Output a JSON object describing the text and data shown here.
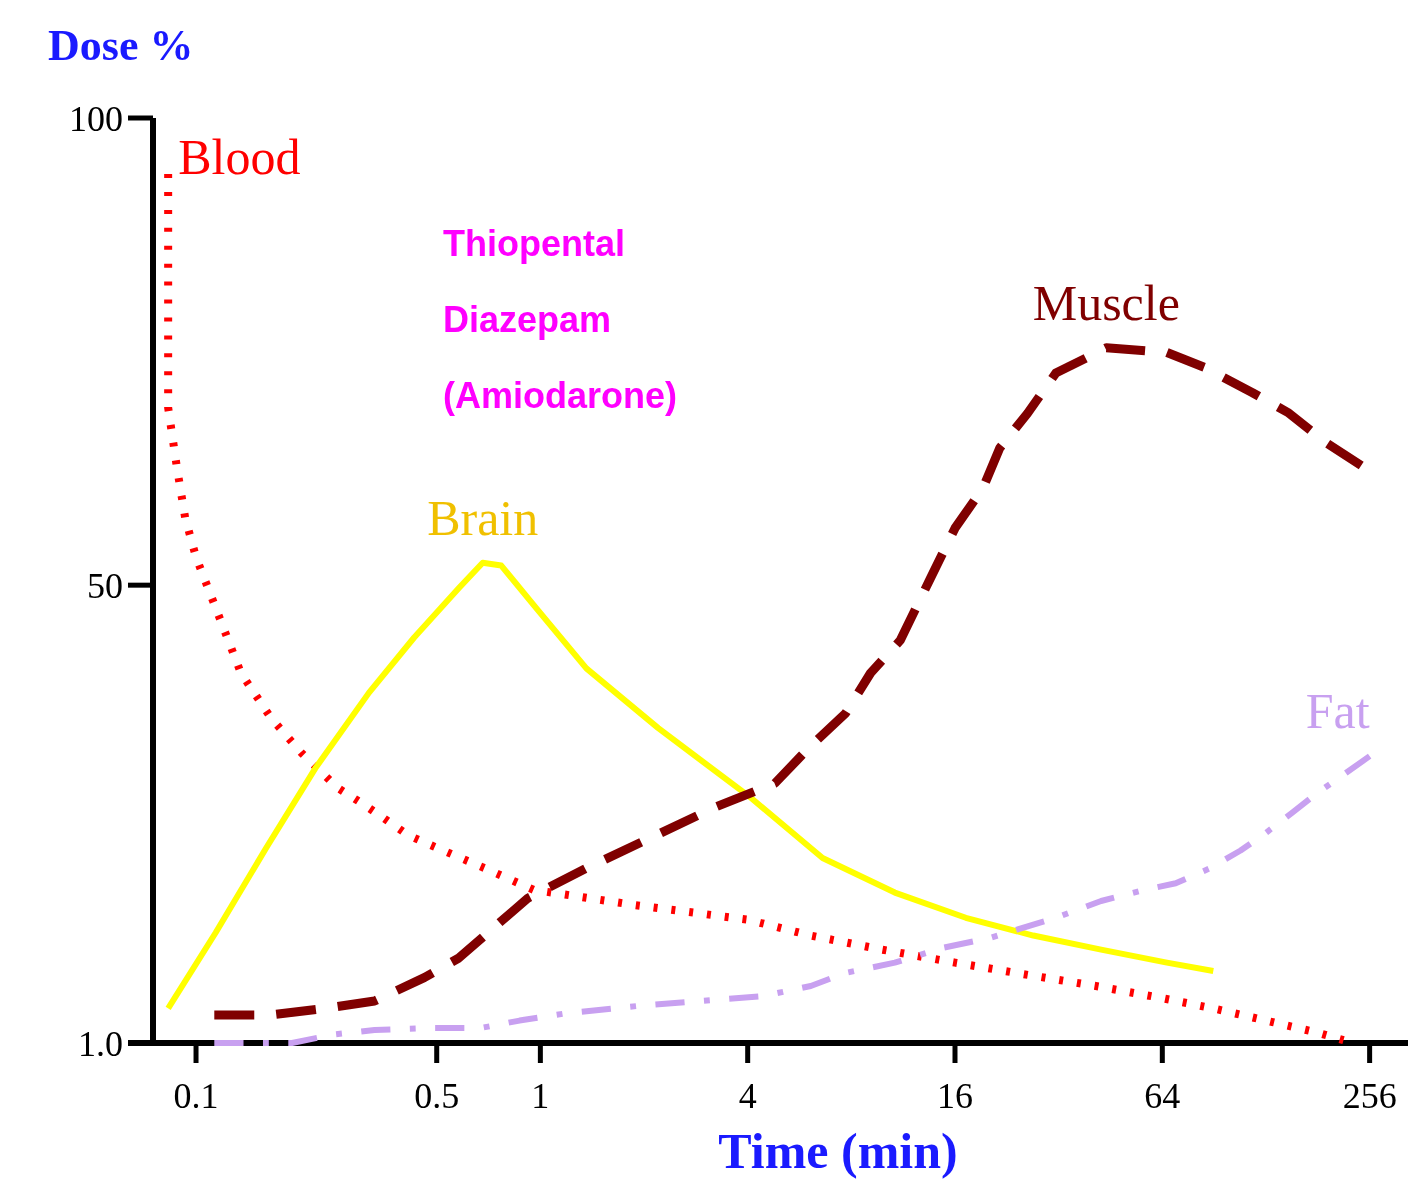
{
  "chart_data": {
    "type": "line",
    "xlabel": "Time (min)",
    "ylabel": "Dose %",
    "log": "x",
    "xlim": [
      0.075,
      320
    ],
    "ylim": [
      1,
      100
    ],
    "xticks": [
      0.1,
      0.5,
      1,
      4,
      16,
      64,
      256
    ],
    "yticks": [
      {
        "value": 1,
        "label": "1.0"
      },
      50,
      100
    ],
    "grid": false,
    "marker": "none",
    "annotations": [
      "Thiopental",
      "Diazepam",
      "(Amiodarone)"
    ],
    "series": [
      {
        "name": "Blood",
        "color": "#ff0000",
        "line_style": "dotted",
        "x": [
          0.083,
          0.083,
          0.083,
          0.088,
          0.093,
          0.1,
          0.114,
          0.135,
          0.165,
          0.203,
          0.258,
          0.308,
          0.415,
          0.5,
          0.69,
          0.955,
          1.85,
          4,
          6.1,
          9.8,
          16,
          25,
          41,
          64,
          90,
          128,
          181,
          215
        ],
        "values": [
          94,
          79.7,
          69,
          62.6,
          57.2,
          53,
          47.6,
          40.6,
          35.8,
          32,
          28.3,
          26.5,
          23.2,
          21.9,
          19.7,
          17.4,
          15.8,
          14.2,
          12.5,
          11,
          9.6,
          8.4,
          7.1,
          5.8,
          4.7,
          3.4,
          2.1,
          1.3
        ]
      },
      {
        "name": "Brain",
        "color": "#ffff00",
        "line_style": "solid",
        "x": [
          0.083,
          0.114,
          0.16,
          0.222,
          0.318,
          0.43,
          0.58,
          0.68,
          0.77,
          0.97,
          1.36,
          2.2,
          4.1,
          6.6,
          10.7,
          17.2,
          27,
          42.5,
          66,
          90
        ],
        "values": [
          4.7,
          12.8,
          21.9,
          30.4,
          38.5,
          44.4,
          49.7,
          52.4,
          52.1,
          47.6,
          41.1,
          34.7,
          27.2,
          20.8,
          17.1,
          14.4,
          12.5,
          11,
          9.6,
          8.7
        ]
      },
      {
        "name": "Muscle",
        "color": "#800000",
        "line_style": "dashed",
        "x": [
          0.113,
          0.165,
          0.236,
          0.33,
          0.46,
          0.58,
          0.73,
          0.92,
          1.36,
          2.1,
          3.2,
          4.8,
          6.1,
          7.7,
          9.1,
          11.1,
          13.6,
          16,
          19.3,
          21.6,
          26,
          31.4,
          44,
          66,
          85,
          117,
          148,
          192,
          242
        ],
        "values": [
          4,
          4,
          4.7,
          5.5,
          8,
          10.1,
          13.3,
          16.5,
          19.7,
          23,
          26.2,
          28.8,
          32.8,
          36.3,
          40.6,
          44.1,
          50.8,
          56.1,
          60.4,
          64.7,
          68.4,
          72.7,
          75.4,
          74.9,
          73.3,
          70.6,
          68.5,
          65.2,
          62.8
        ]
      },
      {
        "name": "Fat",
        "color": "#c8a0f0",
        "line_style": "dashdot",
        "x": [
          0.113,
          0.19,
          0.25,
          0.33,
          0.49,
          0.67,
          0.87,
          1.2,
          1.96,
          3.2,
          4.4,
          6.1,
          7.7,
          10.7,
          14.8,
          20,
          31.4,
          42.5,
          57,
          70,
          88,
          108,
          128,
          152,
          181,
          209,
          256
        ],
        "values": [
          1,
          1,
          1.9,
          2.4,
          2.6,
          2.6,
          3.4,
          4.2,
          5,
          5.6,
          6,
          7.1,
          8.5,
          9.6,
          11.2,
          12.2,
          14.4,
          16.2,
          17.4,
          18.1,
          19.7,
          21.6,
          23.5,
          25.6,
          27.8,
          29.4,
          31.7
        ]
      }
    ]
  }
}
